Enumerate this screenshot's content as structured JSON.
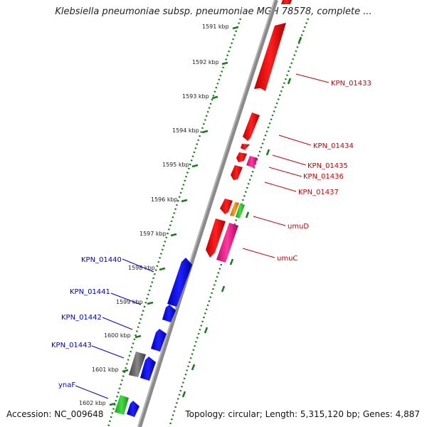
{
  "title": "Klebsiella pneumoniae subsp. pneumoniae MGH 78578, complete ...",
  "footer": {
    "accession": "Accession: NC_009648",
    "topology": "Topology: circular; Length: 5,315,120 bp; Genes: 4,887"
  },
  "colors": {
    "forward_gene": "#ff0000",
    "reverse_gene": "#0000ff",
    "magenta_gene": "#ff1493",
    "orange_gene": "#ff8c00",
    "green_gene": "#22c622",
    "gray_gene": "#666666",
    "backbone": "#888888",
    "ruler": "#1a7a1a",
    "forward_label": "#cc0000",
    "reverse_label": "#0000cc"
  },
  "ruler_ticks": [
    "1591 kbp",
    "1592 kbp",
    "1593 kbp",
    "1594 kbp",
    "1595 kbp",
    "1596 kbp",
    "1597 kbp",
    "1598 kbp",
    "1599 kbp",
    "1600 kbp",
    "1601 kbp",
    "1602 kbp"
  ],
  "forward_labels": [
    "KPN_01433",
    "KPN_01434",
    "KPN_01435",
    "KPN_01436",
    "KPN_01437",
    "umuD",
    "umuC"
  ],
  "reverse_labels": [
    "KPN_01440",
    "KPN_01441",
    "KPN_01442",
    "KPN_01443",
    "ynaF"
  ]
}
